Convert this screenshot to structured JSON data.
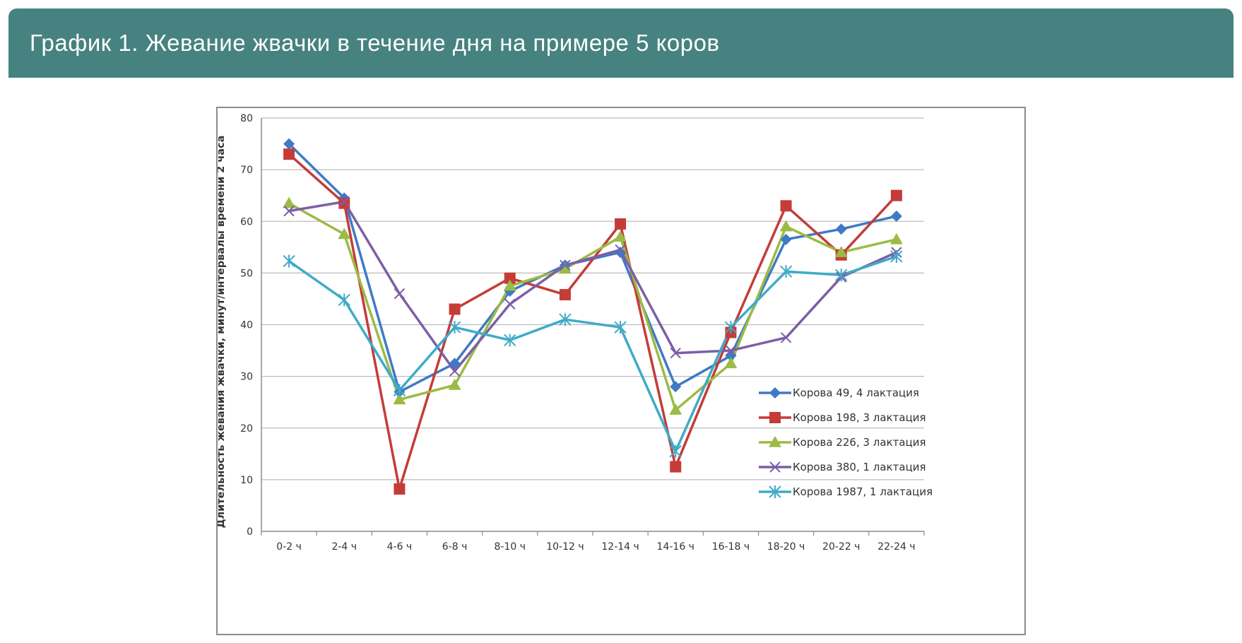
{
  "header": {
    "title": "График 1. Жевание жвачки в течение дня на примере 5 коров"
  },
  "chart_data": {
    "type": "line",
    "title": "",
    "xlabel": "",
    "ylabel": "Длительность жевания жвачки, минут/интервалы времени 2 часа",
    "ylim": [
      0,
      80
    ],
    "yticks": [
      "0",
      "10",
      "20",
      "30",
      "40",
      "50",
      "60",
      "70",
      "80"
    ],
    "grid": "horizontal",
    "legend_position": "bottom-right",
    "categories": [
      "0-2 ч",
      "2-4 ч",
      "4-6 ч",
      "6-8 ч",
      "8-10 ч",
      "10-12 ч",
      "12-14 ч",
      "14-16 ч",
      "16-18 ч",
      "18-20 ч",
      "20-22 ч",
      "22-24 ч"
    ],
    "series": [
      {
        "name": "Корова 49, 4 лактация",
        "color": "#3f7ac4",
        "marker": "diamond",
        "values": [
          75,
          64.5,
          27,
          32.5,
          46.5,
          51.5,
          54,
          28,
          34,
          56.5,
          58.5,
          61
        ]
      },
      {
        "name": "Корова 198, 3 лактация",
        "color": "#c43c38",
        "marker": "square",
        "values": [
          73,
          63.5,
          8.2,
          43,
          49,
          45.8,
          59.5,
          12.5,
          38.5,
          63,
          53.5,
          65
        ]
      },
      {
        "name": "Корова 226, 3 лактация",
        "color": "#9bbb44",
        "marker": "triangle",
        "values": [
          63.5,
          57.5,
          25.5,
          28.3,
          47.5,
          50.8,
          57,
          23.5,
          32.5,
          59,
          54,
          56.5
        ]
      },
      {
        "name": "Корова 380, 1 лактация",
        "color": "#7d5ea6",
        "marker": "x",
        "values": [
          62,
          63.8,
          46,
          31,
          44,
          51.5,
          54.5,
          34.5,
          35,
          37.5,
          49.2,
          54
        ]
      },
      {
        "name": "Корова 1987, 1 лактация",
        "color": "#3eabc8",
        "marker": "star",
        "values": [
          52.3,
          44.8,
          27.3,
          39.5,
          37,
          41,
          39.5,
          15.5,
          39.5,
          50.3,
          49.6,
          53.2
        ]
      }
    ]
  }
}
